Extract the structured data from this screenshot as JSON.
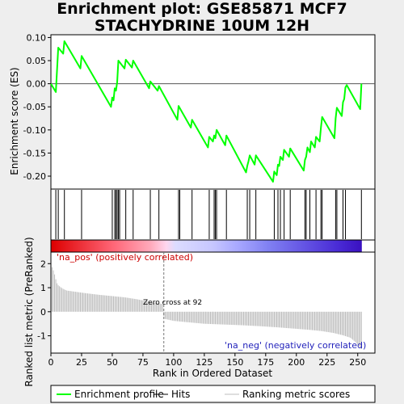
{
  "title_line1": "Enrichment plot: GSE85871 MCF7",
  "title_line2": "STACHYDRINE 10UM 12H",
  "chart_data": {
    "type": "line",
    "x_range": [
      0,
      264
    ],
    "xlabel": "Rank in Ordered Dataset",
    "x_ticks": [
      0,
      25,
      50,
      75,
      100,
      125,
      150,
      175,
      200,
      225,
      250
    ],
    "es_panel": {
      "ylabel": "Enrichment score (ES)",
      "ylim": [
        -0.228,
        0.106
      ],
      "y_ticks": [
        0.1,
        0.05,
        0.0,
        -0.05,
        -0.1,
        -0.15,
        -0.2
      ],
      "y_tick_labels": [
        "0.10",
        "0.05",
        "0.00",
        "-0.05",
        "-0.10",
        "-0.15",
        "-0.20"
      ],
      "series_name": "Enrichment profile",
      "color": "#00ff00",
      "points": [
        [
          0,
          0
        ],
        [
          4,
          -0.018
        ],
        [
          5,
          0.03
        ],
        [
          6,
          0.078
        ],
        [
          10,
          0.065
        ],
        [
          11,
          0.092
        ],
        [
          24,
          0.033
        ],
        [
          25,
          0.06
        ],
        [
          49,
          -0.05
        ],
        [
          50,
          -0.03
        ],
        [
          51,
          -0.036
        ],
        [
          52,
          -0.01
        ],
        [
          53,
          -0.015
        ],
        [
          54,
          0.003
        ],
        [
          55,
          0.05
        ],
        [
          60,
          0.033
        ],
        [
          61,
          0.052
        ],
        [
          66,
          0.035
        ],
        [
          67,
          0.05
        ],
        [
          80,
          -0.01
        ],
        [
          81,
          0.005
        ],
        [
          87,
          -0.015
        ],
        [
          88,
          -0.005
        ],
        [
          103,
          -0.078
        ],
        [
          104,
          -0.048
        ],
        [
          114,
          -0.095
        ],
        [
          115,
          -0.078
        ],
        [
          128,
          -0.138
        ],
        [
          129,
          -0.115
        ],
        [
          132,
          -0.125
        ],
        [
          133,
          -0.112
        ],
        [
          134,
          -0.118
        ],
        [
          135,
          -0.1
        ],
        [
          142,
          -0.133
        ],
        [
          143,
          -0.112
        ],
        [
          159,
          -0.192
        ],
        [
          160,
          -0.178
        ],
        [
          161,
          -0.168
        ],
        [
          162,
          -0.155
        ],
        [
          166,
          -0.175
        ],
        [
          167,
          -0.155
        ],
        [
          181,
          -0.212
        ],
        [
          182,
          -0.19
        ],
        [
          184,
          -0.198
        ],
        [
          185,
          -0.175
        ],
        [
          186,
          -0.178
        ],
        [
          187,
          -0.158
        ],
        [
          189,
          -0.165
        ],
        [
          190,
          -0.143
        ],
        [
          194,
          -0.158
        ],
        [
          195,
          -0.14
        ],
        [
          206,
          -0.188
        ],
        [
          207,
          -0.165
        ],
        [
          208,
          -0.158
        ],
        [
          209,
          -0.138
        ],
        [
          211,
          -0.148
        ],
        [
          212,
          -0.125
        ],
        [
          215,
          -0.138
        ],
        [
          216,
          -0.115
        ],
        [
          219,
          -0.125
        ],
        [
          220,
          -0.095
        ],
        [
          221,
          -0.072
        ],
        [
          231,
          -0.118
        ],
        [
          232,
          -0.075
        ],
        [
          233,
          -0.052
        ],
        [
          237,
          -0.07
        ],
        [
          238,
          -0.04
        ],
        [
          239,
          -0.033
        ],
        [
          240,
          -0.008
        ],
        [
          241,
          -0.003
        ],
        [
          252,
          -0.055
        ],
        [
          253,
          0.0
        ]
      ]
    },
    "hits_panel": {
      "series_name": "Hits",
      "positions": [
        4,
        6,
        11,
        25,
        50,
        52,
        53,
        54,
        55,
        56,
        61,
        67,
        81,
        88,
        104,
        105,
        115,
        129,
        133,
        134,
        135,
        143,
        160,
        162,
        167,
        182,
        185,
        187,
        190,
        195,
        207,
        208,
        211,
        216,
        220,
        221,
        232,
        233,
        238,
        240,
        253
      ]
    },
    "color_bar": {
      "stops": [
        {
          "pos": 0.0,
          "color": "#dd0000"
        },
        {
          "pos": 0.2,
          "color": "#ff6677"
        },
        {
          "pos": 0.32,
          "color": "#ffaabb"
        },
        {
          "pos": 0.37,
          "color": "#ffd6ee"
        },
        {
          "pos": 0.4,
          "color": "#dcdcff"
        },
        {
          "pos": 0.52,
          "color": "#c6c6ff"
        },
        {
          "pos": 0.6,
          "color": "#a8a8ff"
        },
        {
          "pos": 0.7,
          "color": "#8080f2"
        },
        {
          "pos": 0.92,
          "color": "#4a2cd6"
        },
        {
          "pos": 1.0,
          "color": "#3a10c0"
        }
      ]
    },
    "metric_panel": {
      "ylabel": "Ranked list metric (PreRanked)",
      "ylim": [
        -1.72,
        2.48
      ],
      "y_ticks": [
        2,
        1,
        0,
        -1
      ],
      "series_name": "Ranking metric scores",
      "color": "#bebebe",
      "zero_cross_label": "Zero cross at 92",
      "zero_cross_at": 92,
      "pos_label": "'na_pos' (positively correlated)",
      "neg_label": "'na_neg' (negatively correlated)",
      "pos_color": "#cc0000",
      "neg_color": "#2222bb",
      "profile": [
        [
          1,
          1.85
        ],
        [
          2,
          1.72
        ],
        [
          3,
          1.55
        ],
        [
          4,
          1.35
        ],
        [
          5,
          1.18
        ],
        [
          6,
          1.1
        ],
        [
          8,
          1.02
        ],
        [
          10,
          0.95
        ],
        [
          13,
          0.88
        ],
        [
          20,
          0.83
        ],
        [
          30,
          0.76
        ],
        [
          40,
          0.7
        ],
        [
          50,
          0.65
        ],
        [
          60,
          0.6
        ],
        [
          70,
          0.52
        ],
        [
          80,
          0.42
        ],
        [
          88,
          0.35
        ],
        [
          91,
          0.32
        ],
        [
          92,
          -0.18
        ],
        [
          93,
          -0.3
        ],
        [
          100,
          -0.38
        ],
        [
          110,
          -0.43
        ],
        [
          125,
          -0.5
        ],
        [
          140,
          -0.53
        ],
        [
          155,
          -0.56
        ],
        [
          170,
          -0.6
        ],
        [
          185,
          -0.65
        ],
        [
          200,
          -0.71
        ],
        [
          210,
          -0.75
        ],
        [
          220,
          -0.8
        ],
        [
          230,
          -0.88
        ],
        [
          238,
          -0.98
        ],
        [
          244,
          -1.08
        ],
        [
          248,
          -1.25
        ],
        [
          251,
          -1.42
        ],
        [
          253,
          -1.55
        ]
      ]
    },
    "legend": {
      "items": [
        {
          "label": "Enrichment profile",
          "color": "#00ff00"
        },
        {
          "label": "Hits",
          "color": "#000000"
        },
        {
          "label": "Ranking metric scores",
          "color": "#bebebe"
        }
      ],
      "placement": "bottom"
    }
  }
}
